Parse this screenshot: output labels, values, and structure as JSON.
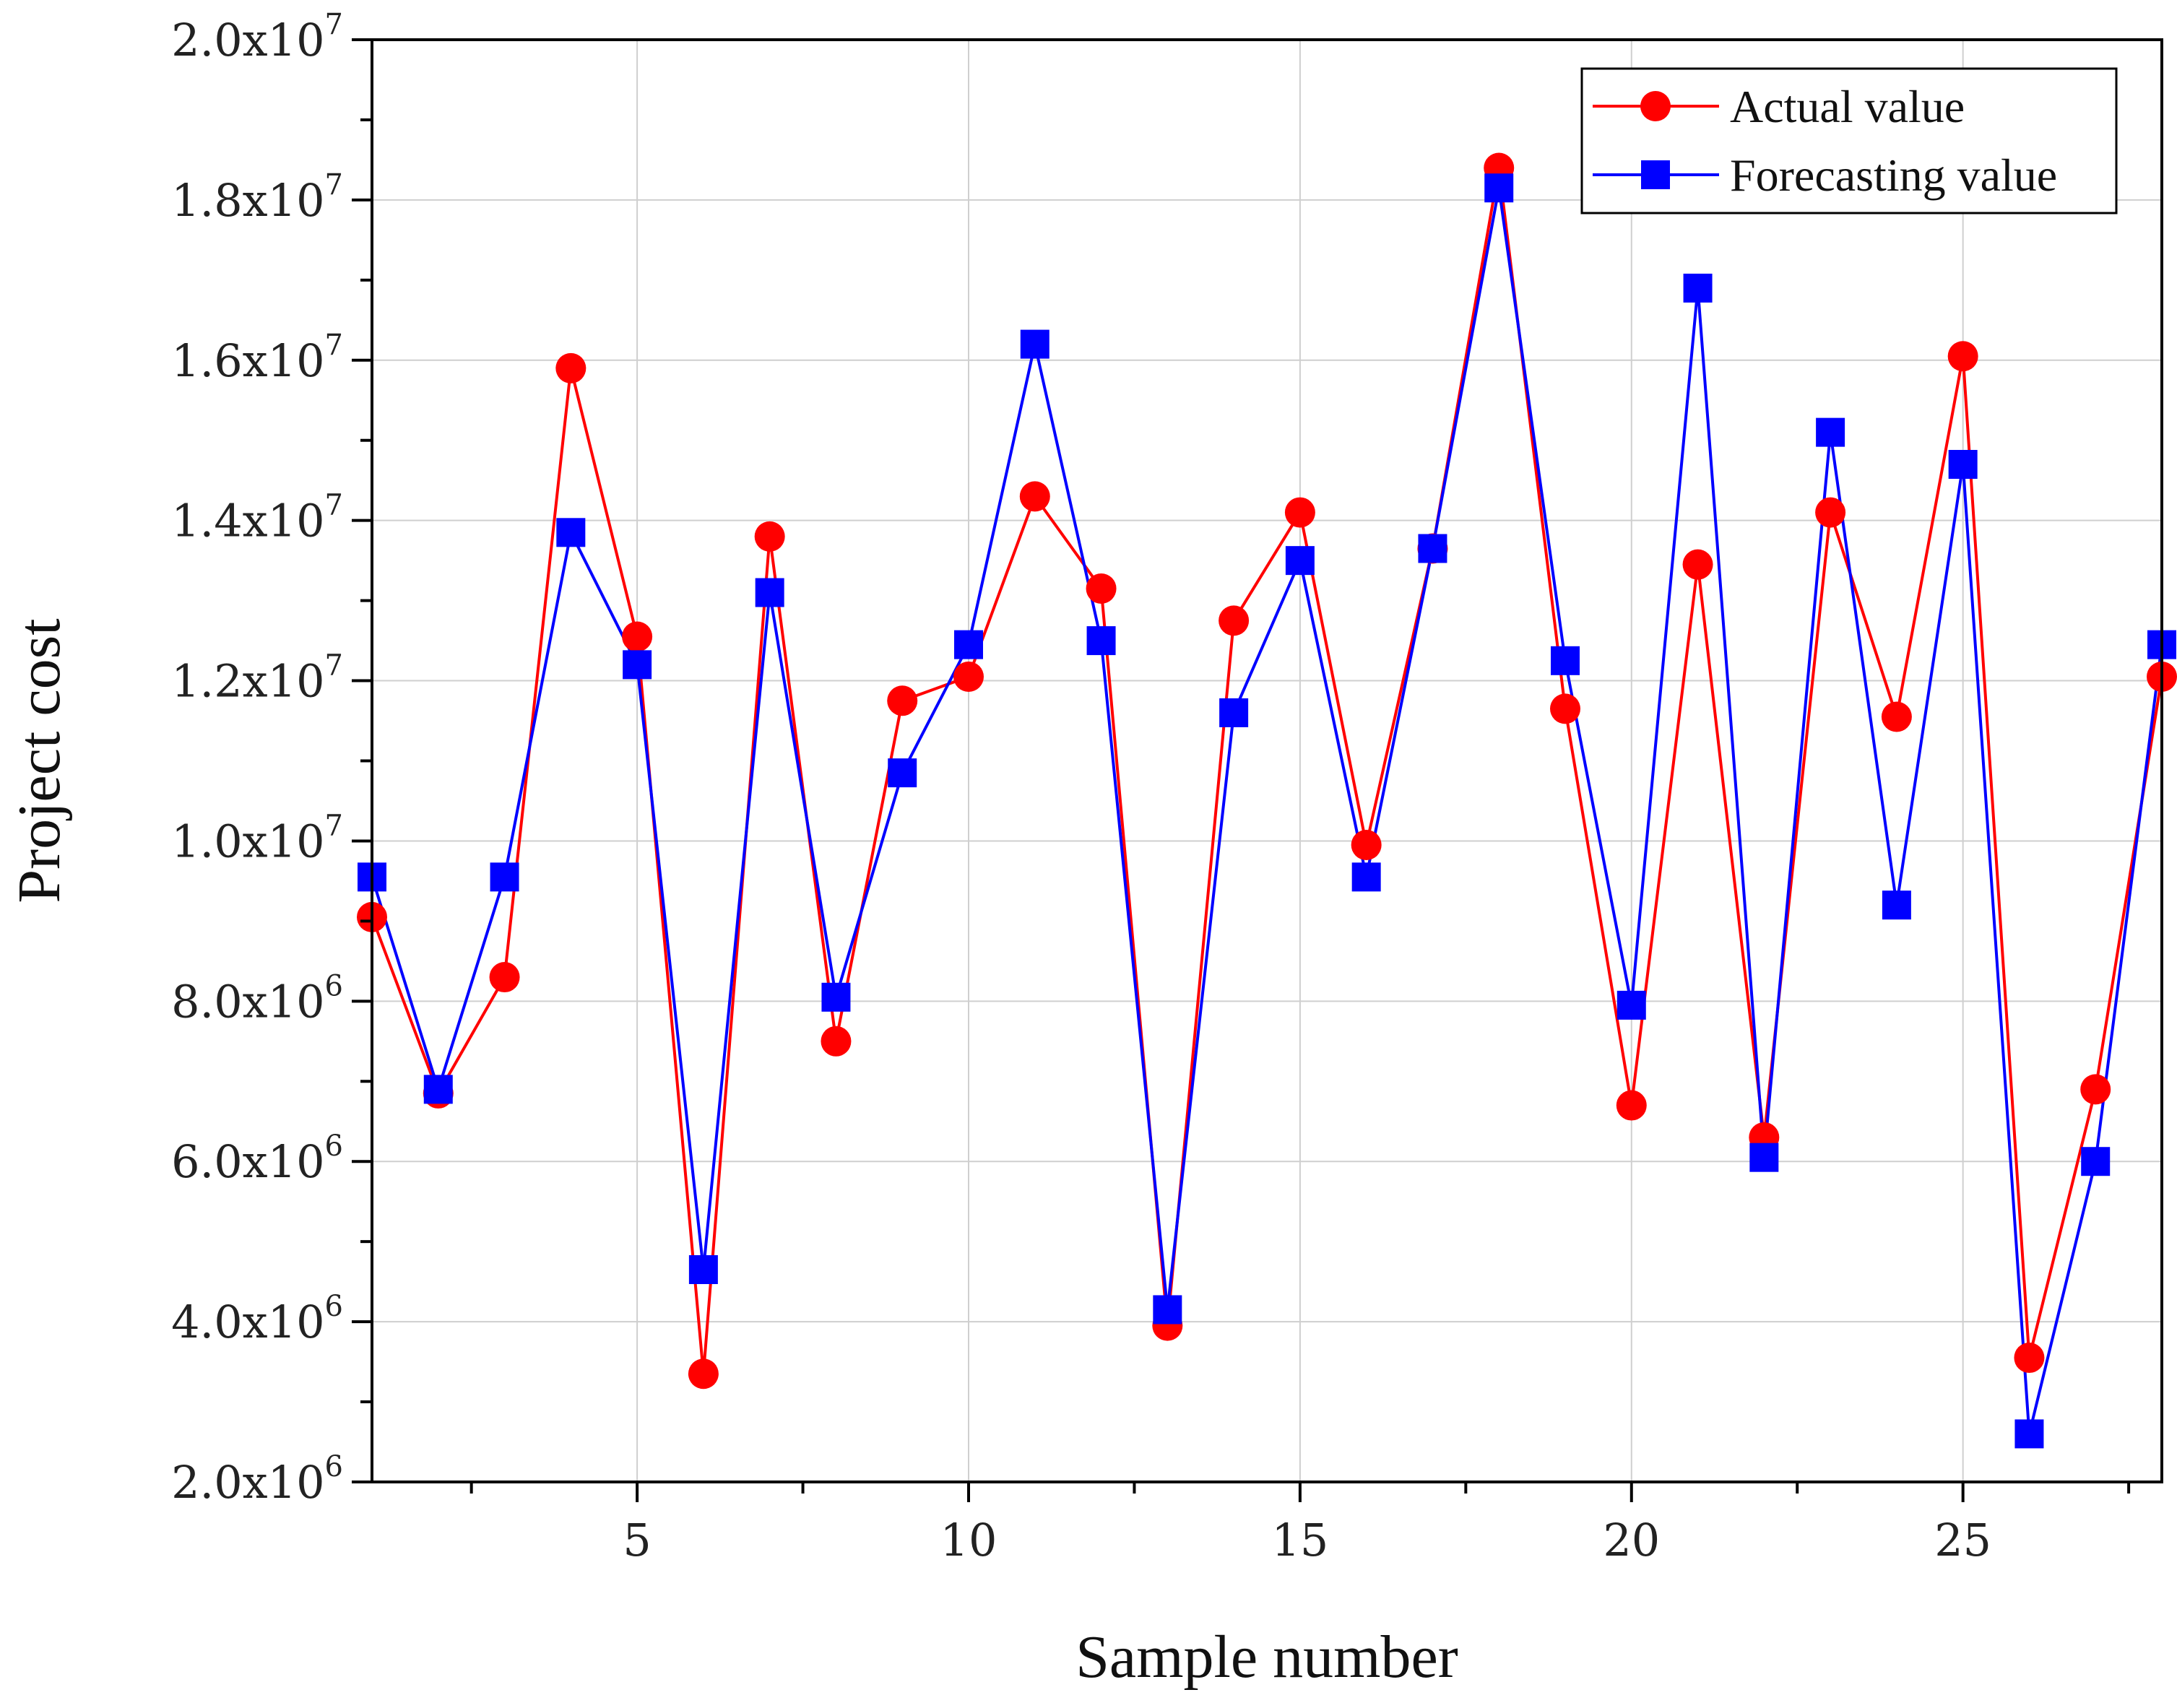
{
  "chart_data": {
    "type": "line",
    "title": "",
    "xlabel": "Sample number",
    "ylabel": "Project cost",
    "xlim": [
      1,
      28
    ],
    "ylim": [
      2000000,
      20000000
    ],
    "grid": true,
    "legend_position": "top-right",
    "x_ticks": [
      5,
      10,
      15,
      20,
      25
    ],
    "x_tick_labels": [
      "5",
      "10",
      "15",
      "20",
      "25"
    ],
    "y_ticks": [
      2000000,
      4000000,
      6000000,
      8000000,
      10000000,
      12000000,
      14000000,
      16000000,
      18000000,
      20000000
    ],
    "y_tick_labels": [
      {
        "mantissa": "2.0x10",
        "exp": "6"
      },
      {
        "mantissa": "4.0x10",
        "exp": "6"
      },
      {
        "mantissa": "6.0x10",
        "exp": "6"
      },
      {
        "mantissa": "8.0x10",
        "exp": "6"
      },
      {
        "mantissa": "1.0x10",
        "exp": "7"
      },
      {
        "mantissa": "1.2x10",
        "exp": "7"
      },
      {
        "mantissa": "1.4x10",
        "exp": "7"
      },
      {
        "mantissa": "1.6x10",
        "exp": "7"
      },
      {
        "mantissa": "1.8x10",
        "exp": "7"
      },
      {
        "mantissa": "2.0x10",
        "exp": "7"
      }
    ],
    "x": [
      1,
      2,
      3,
      4,
      5,
      6,
      7,
      8,
      9,
      10,
      11,
      12,
      13,
      14,
      15,
      16,
      17,
      18,
      19,
      20,
      21,
      22,
      23,
      24,
      25,
      26,
      27,
      28
    ],
    "series": [
      {
        "name": "Actual value",
        "color": "#ff0000",
        "marker": "circle",
        "values": [
          9050000,
          6850000,
          8300000,
          15900000,
          12550000,
          3350000,
          13800000,
          7500000,
          11750000,
          12050000,
          14300000,
          13150000,
          3950000,
          12750000,
          14100000,
          9950000,
          13650000,
          18400000,
          11650000,
          6700000,
          13450000,
          6300000,
          14100000,
          11550000,
          16050000,
          3550000,
          6900000,
          12050000
        ]
      },
      {
        "name": "Forecasting value",
        "color": "#0000ff",
        "marker": "square",
        "values": [
          9550000,
          6900000,
          9550000,
          13850000,
          12200000,
          4650000,
          13100000,
          8050000,
          10850000,
          12450000,
          16200000,
          12500000,
          4150000,
          11600000,
          13500000,
          9550000,
          13650000,
          18150000,
          12250000,
          7950000,
          16900000,
          6050000,
          15100000,
          9200000,
          14700000,
          2600000,
          6000000,
          12450000
        ]
      }
    ]
  }
}
